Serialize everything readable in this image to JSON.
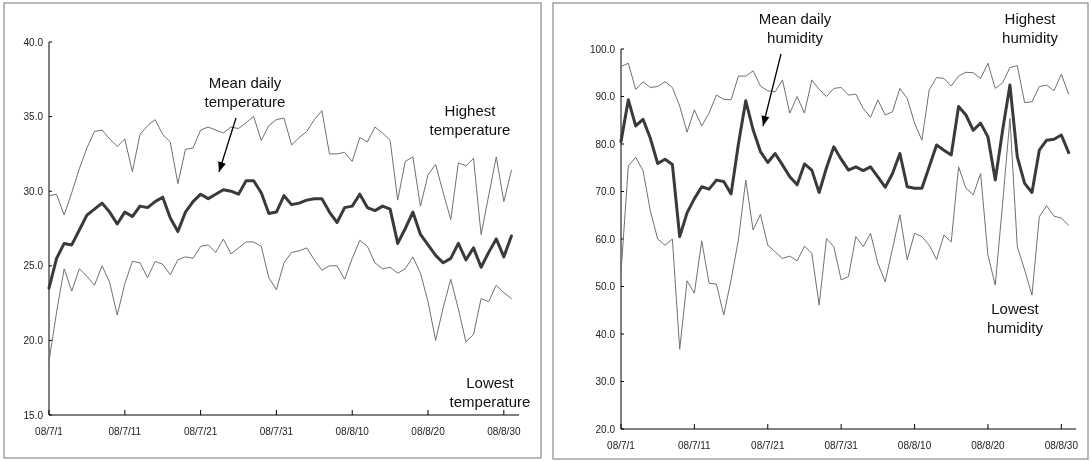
{
  "chart_data": [
    {
      "type": "line",
      "x": [
        "--07-01",
        "--07-02",
        "--07-03",
        "--07-04",
        "--07-05",
        "--07-06",
        "--07-07",
        "--07-08",
        "--07-09",
        "--07-10",
        "--07-11",
        "--07-12",
        "--07-13",
        "--07-14",
        "--07-15",
        "--07-16",
        "--07-17",
        "--07-18",
        "--07-19",
        "--07-20",
        "--07-21",
        "--07-22",
        "--07-23",
        "--07-24",
        "--07-25",
        "--07-26",
        "--07-27",
        "--07-28",
        "--07-29",
        "--07-30",
        "--07-31",
        "--08-01",
        "--08-02",
        "--08-03",
        "--08-04",
        "--08-05",
        "--08-06",
        "--08-07",
        "--08-08",
        "--08-09",
        "--08-10",
        "--08-11",
        "--08-12",
        "--08-13",
        "--08-14",
        "--08-15",
        "--08-16",
        "--08-17",
        "--08-18",
        "--08-19",
        "--08-20",
        "--08-21",
        "--08-22",
        "--08-23",
        "--08-24",
        "--08-25",
        "--08-26",
        "--08-27",
        "--08-28",
        "--08-29",
        "--08-30",
        "--08-31"
      ],
      "xlim": [
        "--07-01",
        "--09-01"
      ],
      "xticks": [
        {
          "value": "--07-01",
          "label": "08/7/1"
        },
        {
          "value": "--07-11",
          "label": "08/7/11"
        },
        {
          "value": "--07-21",
          "label": "08/7/21"
        },
        {
          "value": "--07-31",
          "label": "08/7/31"
        },
        {
          "value": "--08-10",
          "label": "08/8/10"
        },
        {
          "value": "--08-20",
          "label": "08/8/20"
        },
        {
          "value": "--08-30",
          "label": "08/8/30"
        }
      ],
      "ylim": [
        15,
        40
      ],
      "yticks": [
        {
          "value": 15,
          "label": "15.0"
        },
        {
          "value": 20,
          "label": "20.0"
        },
        {
          "value": 25,
          "label": "25.0"
        },
        {
          "value": 30,
          "label": "30.0"
        },
        {
          "value": 35,
          "label": "35.0"
        },
        {
          "value": 40,
          "label": "40.0"
        }
      ],
      "series": [
        {
          "name": "Highest temperature",
          "color": "#707070",
          "values": [
            29.7,
            29.8,
            28.4,
            29.9,
            31.5,
            32.9,
            34.0,
            34.1,
            33.5,
            33.0,
            33.5,
            31.3,
            33.8,
            34.4,
            34.8,
            33.8,
            33.3,
            30.5,
            32.8,
            32.9,
            34.1,
            34.3,
            34.1,
            33.9,
            34.3,
            34.2,
            34.6,
            35.0,
            33.4,
            34.4,
            34.8,
            34.9,
            33.1,
            33.6,
            34.0,
            34.8,
            35.4,
            32.5,
            32.5,
            32.6,
            32.0,
            33.6,
            33.3,
            34.3,
            33.9,
            33.4,
            29.4,
            32.0,
            32.3,
            29.0,
            31.1,
            31.8,
            29.9,
            28.1,
            31.9,
            31.7,
            32.2,
            27.1,
            29.7,
            32.3,
            29.3,
            31.4
          ]
        },
        {
          "name": "Mean daily temperature",
          "color": "#3a3a3a",
          "values": [
            23.5,
            25.5,
            26.5,
            26.4,
            27.4,
            28.4,
            28.8,
            29.2,
            28.6,
            27.8,
            28.6,
            28.3,
            29.0,
            28.9,
            29.3,
            29.6,
            28.2,
            27.3,
            28.6,
            29.3,
            29.8,
            29.5,
            29.8,
            30.1,
            30.0,
            29.8,
            30.7,
            30.7,
            29.9,
            28.5,
            28.6,
            29.7,
            29.1,
            29.2,
            29.4,
            29.5,
            29.5,
            28.6,
            27.9,
            28.9,
            29.0,
            29.8,
            28.9,
            28.7,
            29.0,
            28.8,
            26.5,
            27.5,
            28.6,
            27.1,
            26.4,
            25.7,
            25.2,
            25.5,
            26.5,
            25.4,
            26.2,
            24.9,
            25.9,
            26.8,
            25.6,
            27.0
          ]
        },
        {
          "name": "Lowest temperature",
          "color": "#707070",
          "values": [
            18.6,
            21.9,
            24.8,
            23.3,
            24.8,
            24.3,
            23.7,
            25.0,
            23.9,
            21.7,
            23.8,
            25.3,
            25.2,
            24.2,
            25.3,
            25.1,
            24.4,
            25.4,
            25.6,
            25.5,
            26.3,
            26.4,
            25.9,
            26.8,
            25.8,
            26.2,
            26.6,
            26.6,
            26.3,
            24.2,
            23.4,
            25.2,
            25.9,
            26.0,
            26.2,
            25.4,
            24.7,
            25.0,
            25.0,
            24.1,
            25.5,
            26.7,
            26.3,
            25.2,
            24.8,
            24.9,
            24.5,
            24.8,
            25.6,
            24.5,
            22.6,
            20.0,
            22.2,
            24.1,
            22.1,
            19.9,
            20.4,
            22.8,
            22.6,
            23.7,
            23.2,
            22.8
          ]
        }
      ]
    },
    {
      "type": "line",
      "x": [
        "--07-01",
        "--07-02",
        "--07-03",
        "--07-04",
        "--07-05",
        "--07-06",
        "--07-07",
        "--07-08",
        "--07-09",
        "--07-10",
        "--07-11",
        "--07-12",
        "--07-13",
        "--07-14",
        "--07-15",
        "--07-16",
        "--07-17",
        "--07-18",
        "--07-19",
        "--07-20",
        "--07-21",
        "--07-22",
        "--07-23",
        "--07-24",
        "--07-25",
        "--07-26",
        "--07-27",
        "--07-28",
        "--07-29",
        "--07-30",
        "--07-31",
        "--08-01",
        "--08-02",
        "--08-03",
        "--08-04",
        "--08-05",
        "--08-06",
        "--08-07",
        "--08-08",
        "--08-09",
        "--08-10",
        "--08-11",
        "--08-12",
        "--08-13",
        "--08-14",
        "--08-15",
        "--08-16",
        "--08-17",
        "--08-18",
        "--08-19",
        "--08-20",
        "--08-21",
        "--08-22",
        "--08-23",
        "--08-24",
        "--08-25",
        "--08-26",
        "--08-27",
        "--08-28",
        "--08-29",
        "--08-30",
        "--08-31"
      ],
      "xlim": [
        "--07-01",
        "--09-01"
      ],
      "xticks": [
        {
          "value": "--07-01",
          "label": "08/7/1"
        },
        {
          "value": "--07-11",
          "label": "08/7/11"
        },
        {
          "value": "--07-21",
          "label": "08/7/21"
        },
        {
          "value": "--07-31",
          "label": "08/7/31"
        },
        {
          "value": "--08-10",
          "label": "08/8/10"
        },
        {
          "value": "--08-20",
          "label": "08/8/20"
        },
        {
          "value": "--08-30",
          "label": "08/8/30"
        }
      ],
      "ylim": [
        20,
        100
      ],
      "yticks": [
        {
          "value": 20,
          "label": "20.0"
        },
        {
          "value": 30,
          "label": "30.0"
        },
        {
          "value": 40,
          "label": "40.0"
        },
        {
          "value": 50,
          "label": "50.0"
        },
        {
          "value": 60,
          "label": "60.0"
        },
        {
          "value": 70,
          "label": "70.0"
        },
        {
          "value": 80,
          "label": "80.0"
        },
        {
          "value": 90,
          "label": "90.0"
        },
        {
          "value": 100,
          "label": "100.0"
        }
      ],
      "series": [
        {
          "name": "Highest humidity",
          "color": "#707070",
          "values": [
            96.3,
            97.0,
            91.5,
            93.1,
            91.9,
            92.1,
            93.1,
            91.9,
            88.0,
            82.5,
            87.2,
            83.8,
            86.5,
            90.3,
            89.4,
            89.3,
            94.3,
            94.3,
            95.4,
            92.2,
            91.2,
            91.0,
            93.5,
            86.5,
            90.0,
            86.5,
            93.5,
            91.5,
            90.0,
            91.7,
            91.9,
            90.3,
            90.5,
            87.5,
            85.6,
            89.3,
            86.1,
            86.8,
            91.7,
            89.6,
            84.4,
            80.8,
            91.4,
            94.0,
            93.8,
            92.2,
            94.3,
            95.1,
            95.0,
            93.8,
            97.0,
            91.7,
            92.9,
            96.1,
            96.5,
            88.7,
            88.9,
            92.1,
            92.4,
            91.2,
            94.7,
            90.5
          ]
        },
        {
          "name": "Mean daily humidity",
          "color": "#3a3a3a",
          "values": [
            80.5,
            89.3,
            83.8,
            85.2,
            81.2,
            75.9,
            76.8,
            75.7,
            60.5,
            65.5,
            68.5,
            71.0,
            70.5,
            72.4,
            72.1,
            69.5,
            80.0,
            89.1,
            83.0,
            78.4,
            76.1,
            78.0,
            75.6,
            73.1,
            71.4,
            75.8,
            74.5,
            69.8,
            75.0,
            79.4,
            76.8,
            74.5,
            75.2,
            74.4,
            75.2,
            73.1,
            70.9,
            73.8,
            78.0,
            71.0,
            70.7,
            70.7,
            75.2,
            79.8,
            78.7,
            77.7,
            87.9,
            86.1,
            82.9,
            84.4,
            81.5,
            72.4,
            82.9,
            92.4,
            77.3,
            71.7,
            69.8,
            78.7,
            80.8,
            81.0,
            81.9,
            78.2
          ]
        },
        {
          "name": "Lowest humidity",
          "color": "#707070",
          "values": [
            52.9,
            75.4,
            77.2,
            74.4,
            65.9,
            60.0,
            58.7,
            60.0,
            36.8,
            51.2,
            48.6,
            59.6,
            50.7,
            50.5,
            44.0,
            51.4,
            59.8,
            72.4,
            61.9,
            65.2,
            58.7,
            57.3,
            55.9,
            56.4,
            55.4,
            58.5,
            57.0,
            46.1,
            60.1,
            58.4,
            51.4,
            52.1,
            60.5,
            58.4,
            61.2,
            54.9,
            51.0,
            58.0,
            65.1,
            55.6,
            61.2,
            60.5,
            58.7,
            55.7,
            60.8,
            59.4,
            75.2,
            70.7,
            69.3,
            73.8,
            56.6,
            50.3,
            67.5,
            85.4,
            58.4,
            53.5,
            48.2,
            64.7,
            67.0,
            64.8,
            64.4,
            62.9
          ]
        }
      ]
    }
  ]
}
